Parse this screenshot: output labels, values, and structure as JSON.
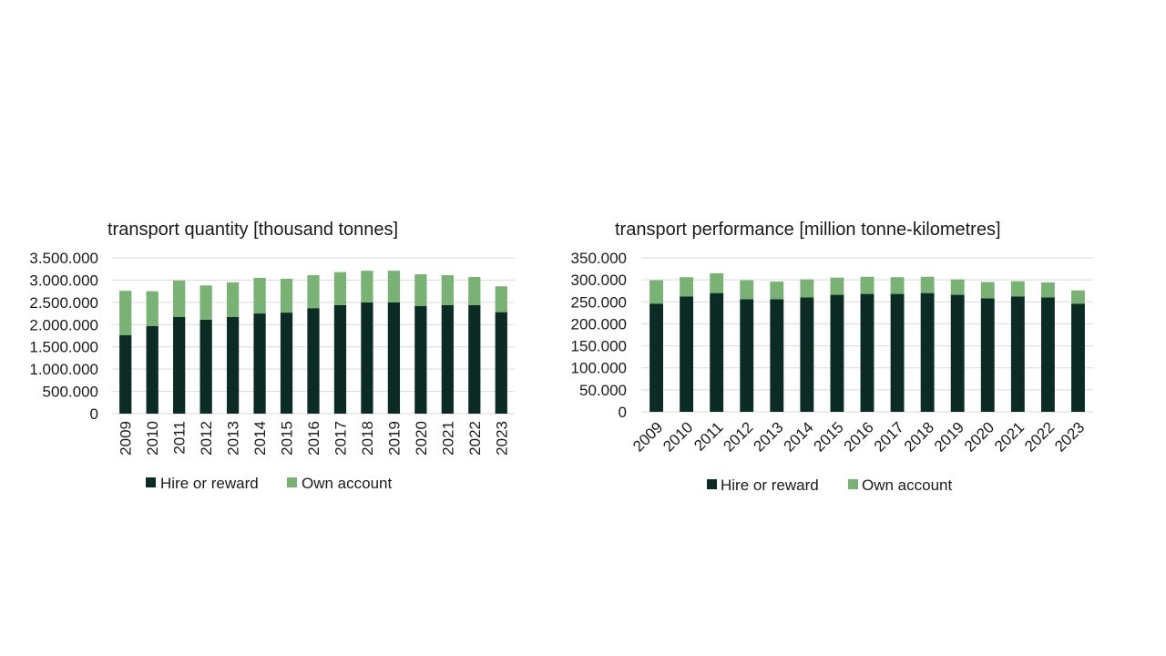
{
  "colors": {
    "hire_or_reward": "#0b2b24",
    "own_account": "#79b274",
    "gridline": "#d9d9d9",
    "text": "#1a1a1a"
  },
  "chart_data": [
    {
      "type": "bar",
      "stacked": true,
      "title": "transport quantity [thousand tonnes]",
      "xlabel": "",
      "ylabel": "",
      "categories": [
        "2009",
        "2010",
        "2011",
        "2012",
        "2013",
        "2014",
        "2015",
        "2016",
        "2017",
        "2018",
        "2019",
        "2020",
        "2021",
        "2022",
        "2023"
      ],
      "series": [
        {
          "name": "Hire or reward",
          "color": "#0b2b24",
          "values": [
            1760000,
            1970000,
            2170000,
            2110000,
            2170000,
            2250000,
            2270000,
            2370000,
            2440000,
            2500000,
            2500000,
            2420000,
            2440000,
            2440000,
            2280000
          ]
        },
        {
          "name": "Own account",
          "color": "#79b274",
          "values": [
            1000000,
            780000,
            820000,
            770000,
            780000,
            800000,
            760000,
            740000,
            740000,
            710000,
            710000,
            710000,
            670000,
            630000,
            580000
          ]
        }
      ],
      "ylim": [
        0,
        3500000
      ],
      "yticks": [
        0,
        500000,
        1000000,
        1500000,
        2000000,
        2500000,
        3000000,
        3500000
      ],
      "ytick_labels": [
        "0",
        "500.000",
        "1.000.000",
        "1.500.000",
        "2.000.000",
        "2.500.000",
        "3.000.000",
        "3.500.000"
      ],
      "x_tick_rotation": "vertical",
      "grid": true,
      "legend": "bottom"
    },
    {
      "type": "bar",
      "stacked": true,
      "title": "transport performance [million tonne-kilometres]",
      "xlabel": "",
      "ylabel": "",
      "categories": [
        "2009",
        "2010",
        "2011",
        "2012",
        "2013",
        "2014",
        "2015",
        "2016",
        "2017",
        "2018",
        "2019",
        "2020",
        "2021",
        "2022",
        "2023"
      ],
      "series": [
        {
          "name": "Hire or reward",
          "color": "#0b2b24",
          "values": [
            246000,
            262000,
            270000,
            256000,
            256000,
            260000,
            266000,
            268000,
            268000,
            270000,
            266000,
            258000,
            262000,
            260000,
            246000
          ]
        },
        {
          "name": "Own account",
          "color": "#79b274",
          "values": [
            53000,
            44000,
            45000,
            43000,
            40000,
            41000,
            39000,
            39000,
            38000,
            37000,
            35000,
            37000,
            35000,
            34000,
            30000
          ]
        }
      ],
      "ylim": [
        0,
        350000
      ],
      "yticks": [
        0,
        50000,
        100000,
        150000,
        200000,
        250000,
        300000,
        350000
      ],
      "ytick_labels": [
        "0",
        "50.000",
        "100.000",
        "150.000",
        "200.000",
        "250.000",
        "300.000",
        "350.000"
      ],
      "x_tick_rotation": "diagonal",
      "grid": true,
      "legend": "bottom"
    }
  ]
}
